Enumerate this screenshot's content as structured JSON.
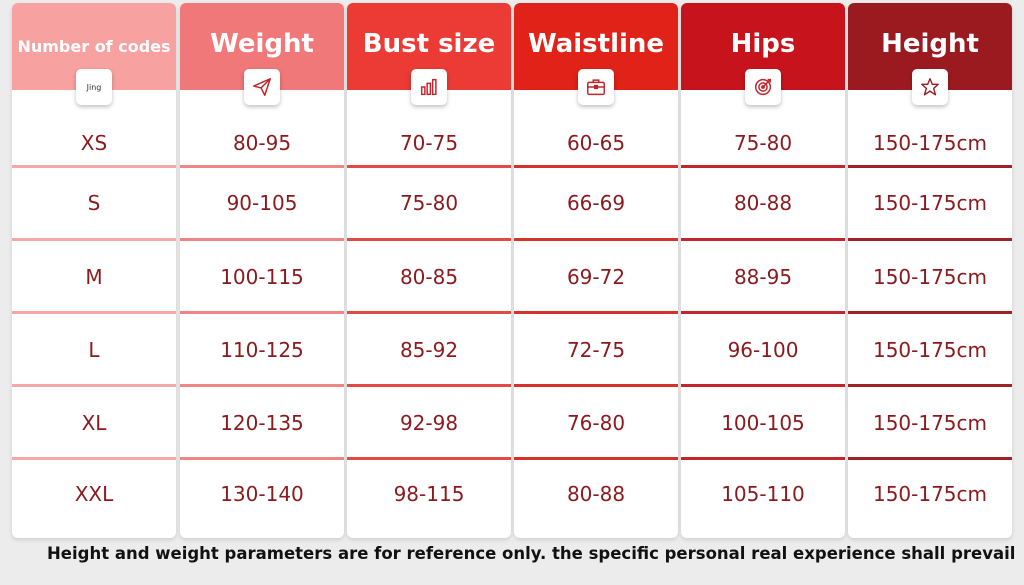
{
  "columns": [
    {
      "title": "Number of codes",
      "icon": "jing-icon",
      "icon_text": "Jing",
      "color": "#f7a1a1",
      "divider": "#f4a8a8"
    },
    {
      "title": "Weight",
      "icon": "paper-plane-icon",
      "color": "#f07878",
      "divider": "#ef8686"
    },
    {
      "title": "Bust size",
      "icon": "bar-chart-icon",
      "color": "#ec3a35",
      "divider": "#e24a46"
    },
    {
      "title": "Waistline",
      "icon": "briefcase-icon",
      "color": "#e02218",
      "divider": "#d6322c"
    },
    {
      "title": "Hips",
      "icon": "target-icon",
      "color": "#c7141c",
      "divider": "#c0262c"
    },
    {
      "title": "Height",
      "icon": "star-icon",
      "color": "#9b1a20",
      "divider": "#9e2228"
    }
  ],
  "rows": [
    [
      "XS",
      "80-95",
      "70-75",
      "60-65",
      "75-80",
      "150-175cm"
    ],
    [
      "S",
      "90-105",
      "75-80",
      "66-69",
      "80-88",
      "150-175cm"
    ],
    [
      "M",
      "100-115",
      "80-85",
      "69-72",
      "88-95",
      "150-175cm"
    ],
    [
      "L",
      "110-125",
      "85-92",
      "72-75",
      "96-100",
      "150-175cm"
    ],
    [
      "XL",
      "120-135",
      "92-98",
      "76-80",
      "100-105",
      "150-175cm"
    ],
    [
      "XXL",
      "130-140",
      "98-115",
      "80-88",
      "105-110",
      "150-175cm"
    ]
  ],
  "footer": "Height and weight parameters are for reference only. the specific personal real experience shall prevail"
}
